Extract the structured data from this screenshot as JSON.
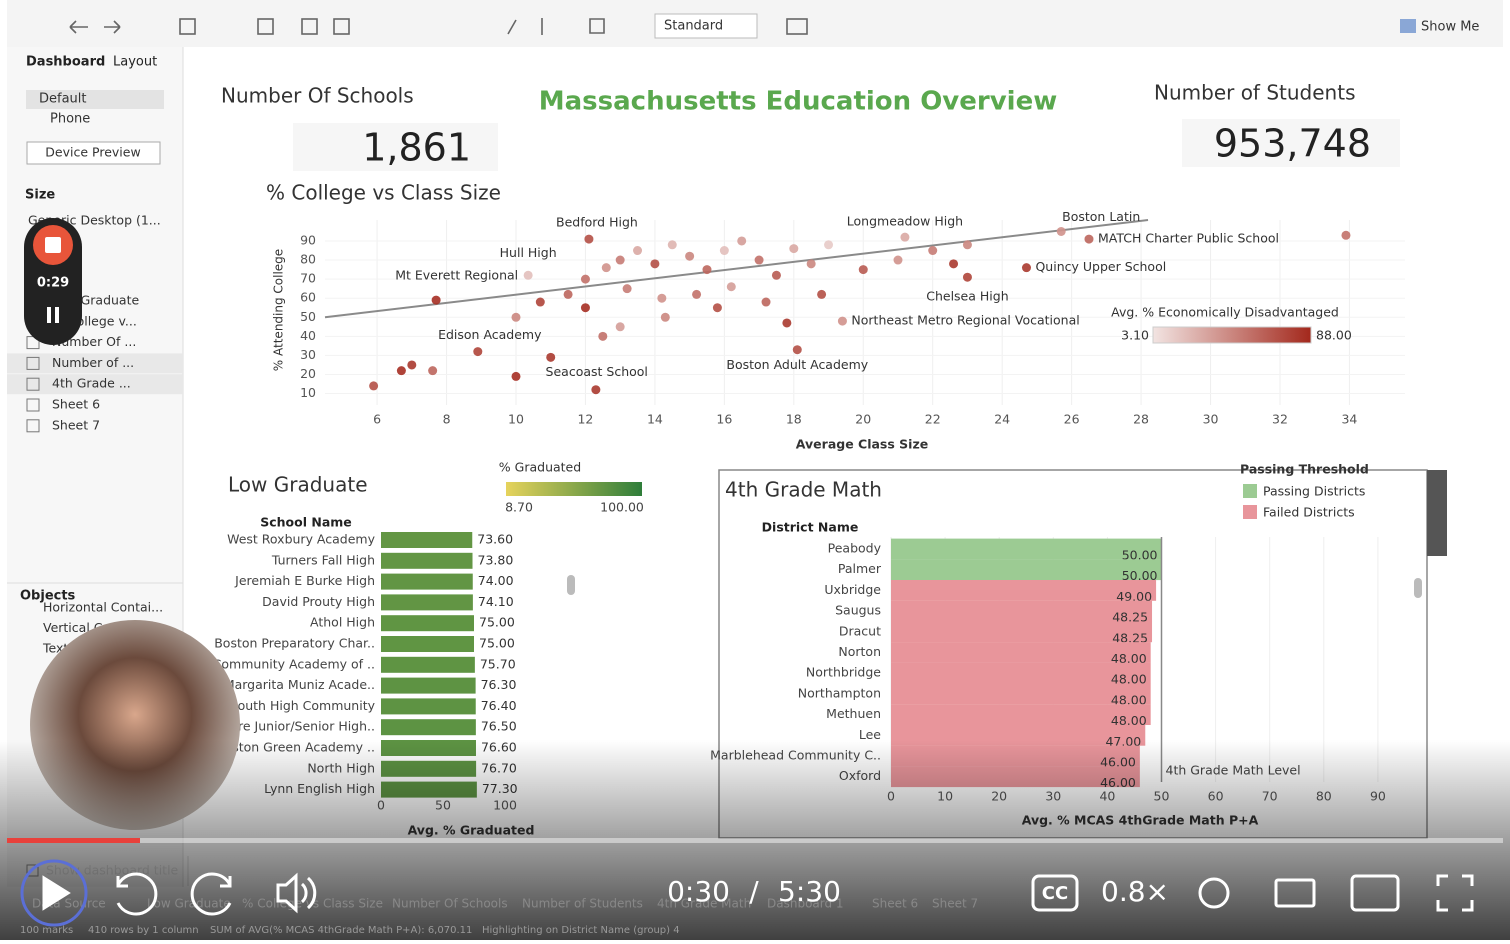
{
  "toolbar": {
    "fit": "Standard",
    "show_me": "Show Me"
  },
  "sidebar": {
    "tabs": [
      "Dashboard",
      "Layout"
    ],
    "devices": [
      "Default",
      "Phone"
    ],
    "device_preview": "Device Preview",
    "size_title": "Size",
    "size_value": "Generic Desktop (1...",
    "sheets": [
      "Low Graduate",
      "% College v...",
      "Number Of ...",
      "Number of ...",
      "4th Grade ...",
      "Sheet 6",
      "Sheet 7"
    ],
    "objects_title": "Objects",
    "objects": [
      "Horizontal Contai...",
      "Vertical Container",
      "Text"
    ],
    "show_title": "Show dashboard title"
  },
  "recorder": {
    "time": "0:29"
  },
  "dashboard": {
    "title": "Massachusetts Education Overview",
    "kpis": [
      {
        "label": "Number Of Schools",
        "value": "1,861"
      },
      {
        "label": "Number of Students",
        "value": "953,748"
      }
    ],
    "scatter": {
      "type": "scatter",
      "title": "% College vs Class Size",
      "x_label": "Average Class Size",
      "y_label": "% Attending College",
      "xlim": [
        4.5,
        35.6
      ],
      "ylim": [
        4,
        101
      ],
      "xticks": [
        6,
        8,
        10,
        12,
        14,
        16,
        18,
        20,
        22,
        24,
        26,
        28,
        30,
        32,
        34
      ],
      "yticks": [
        10,
        20,
        30,
        40,
        50,
        60,
        70,
        80,
        90
      ],
      "trend_line": {
        "x": [
          4.5,
          28.2
        ],
        "y": [
          50,
          101
        ]
      },
      "points": {
        "x": [
          12.1,
          21.2,
          25.7,
          26.5,
          10.35,
          7.7,
          24.7,
          23.0,
          19.4,
          8.9,
          11.0,
          18.1,
          5.9,
          6.7,
          7.0,
          7.6,
          10.0,
          12.3,
          10.0,
          10.7,
          11.5,
          12.0,
          12.6,
          13.0,
          13.5,
          14.0,
          14.5,
          15.0,
          15.5,
          16.0,
          16.5,
          17.0,
          17.5,
          18.0,
          18.5,
          19.0,
          13.2,
          14.2,
          15.2,
          16.2,
          17.2,
          12.5,
          13.0,
          14.3,
          18.8,
          20.0,
          21.0,
          22.0,
          23.0,
          22.6,
          33.9,
          12.0,
          15.8,
          17.8
        ],
        "y": [
          91,
          92,
          95,
          91,
          72,
          59,
          76,
          71,
          48,
          32,
          29,
          33,
          14,
          22,
          25,
          22,
          19,
          12,
          50,
          58,
          62,
          70,
          76,
          80,
          85,
          78,
          88,
          82,
          75,
          85,
          90,
          80,
          72,
          86,
          78,
          88,
          65,
          60,
          62,
          66,
          58,
          40,
          45,
          50,
          62,
          75,
          80,
          85,
          88,
          78,
          93,
          55,
          55,
          47
        ],
        "disadvantaged": [
          70,
          30,
          40,
          60,
          20,
          85,
          80,
          75,
          40,
          75,
          80,
          70,
          70,
          85,
          80,
          60,
          85,
          80,
          45,
          75,
          60,
          55,
          40,
          50,
          30,
          70,
          25,
          45,
          60,
          20,
          35,
          55,
          65,
          30,
          45,
          15,
          50,
          40,
          55,
          35,
          60,
          55,
          35,
          45,
          70,
          65,
          40,
          50,
          45,
          80,
          55,
          85,
          70,
          80
        ]
      },
      "labels": [
        {
          "text": "Bedford High",
          "point": 0
        },
        {
          "text": "Longmeadow High",
          "point": 1
        },
        {
          "text": "Boston Latin",
          "point": 2
        },
        {
          "text": "MATCH Charter Public School",
          "point": 3
        },
        {
          "text": "Hull High",
          "point": 4
        },
        {
          "text": "Mt Everett Regional",
          "point": 5
        },
        {
          "text": "Quincy Upper School",
          "point": 6
        },
        {
          "text": "Chelsea High",
          "point": 7
        },
        {
          "text": "Northeast Metro Regional Vocational",
          "point": 8
        },
        {
          "text": "Edison Academy",
          "point": 9
        },
        {
          "text": "Seacoast School",
          "point": 10
        },
        {
          "text": "Boston Adult Academy",
          "point": 11
        }
      ],
      "legend": {
        "title": "Avg. % Economically Disadvantaged",
        "min": {
          "value": 3.1,
          "label": "3.10"
        },
        "max": {
          "value": 88,
          "label": "88.00"
        },
        "colors": [
          "#f2e4e2",
          "#a3281c"
        ]
      }
    },
    "low_graduate": {
      "type": "bar",
      "title": "Low Graduate",
      "header": "School Name",
      "x_label": "Avg. % Graduated",
      "categories": [
        "West Roxbury Academy",
        "Turners Fall High",
        "Jeremiah E Burke High",
        "David Prouty High",
        "Athol High",
        "Boston Preparatory Char..",
        "Community Academy of ..",
        "Margarita Muniz Acade..",
        "South High Community",
        "are Junior/Senior High..",
        "oston Green Academy ..",
        "North High",
        "Lynn English High"
      ],
      "values": [
        73.6,
        73.8,
        74,
        74.1,
        75,
        75,
        75.7,
        76.3,
        76.4,
        76.5,
        76.6,
        76.7,
        77.3
      ],
      "value_labels": [
        "73.60",
        "73.80",
        "74.00",
        "74.10",
        "75.00",
        "75.00",
        "75.70",
        "76.30",
        "76.40",
        "76.50",
        "76.60",
        "76.70",
        "77.30"
      ],
      "xlim": [
        0,
        110
      ],
      "xticks": [
        0,
        50,
        100
      ],
      "legend": {
        "title": "% Graduated",
        "min": {
          "value": 8.7,
          "label": "8.70"
        },
        "max": {
          "value": 100,
          "label": "100.00"
        },
        "colors": [
          "#e6d35c",
          "#2e7d3a"
        ]
      }
    },
    "math": {
      "type": "bar",
      "title": "4th Grade Math",
      "header": "District Name",
      "x_label": "Avg. % MCAS 4thGrade Math P+A",
      "categories": [
        "Peabody",
        "Palmer",
        "Uxbridge",
        "Saugus",
        "Dracut",
        "Norton",
        "Northbridge",
        "Northampton",
        "Methuen",
        "Lee",
        "Marblehead Community C..",
        "Oxford"
      ],
      "values": [
        50,
        50,
        49,
        48.25,
        48.25,
        48,
        48,
        48,
        48,
        47,
        46,
        46
      ],
      "value_labels": [
        "50.00",
        "50.00",
        "49.00",
        "48.25",
        "48.25",
        "48.00",
        "48.00",
        "48.00",
        "48.00",
        "47.00",
        "46.00",
        "46.00"
      ],
      "xlim": [
        0,
        96
      ],
      "xticks": [
        0,
        10,
        20,
        30,
        40,
        50,
        60,
        70,
        80,
        90
      ],
      "reference": {
        "value": 50,
        "label": "4th Grade Math Level"
      },
      "legend": {
        "title": "Passing Threshold",
        "items": [
          {
            "name": "Passing Districts",
            "color": "#9ccb93"
          },
          {
            "name": "Failed Districts",
            "color": "#e8959b"
          }
        ]
      }
    }
  },
  "sheet_tabs": [
    "Data Source",
    "Low Graduate",
    "% College vs Class Size",
    "Number Of Schools",
    "Number of Students",
    "4th Grade Math",
    "Dashboard 1",
    "Sheet 6",
    "Sheet 7"
  ],
  "status": [
    "100 marks",
    "410 rows by 1 column",
    "SUM of AVG(% MCAS 4thGrade Math P+A): 6,070.11",
    "Highlighting on District Name (group) 4"
  ],
  "video": {
    "time": "0:30",
    "separator": "/",
    "duration": "5:30",
    "speed": "0.8×"
  }
}
